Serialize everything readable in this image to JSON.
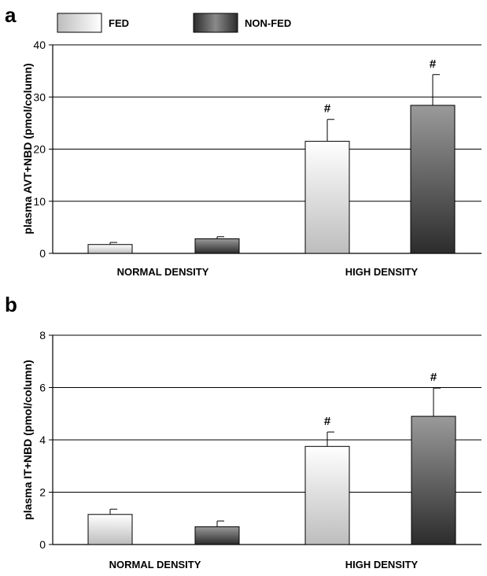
{
  "legend": [
    {
      "label": "FED",
      "style": "light"
    },
    {
      "label": "NON-FED",
      "style": "dark"
    }
  ],
  "colors": {
    "fed_top": "#ffffff",
    "fed_bottom": "#bdbdbd",
    "nonfed_top": "#9a9a9a",
    "nonfed_bottom": "#2c2c2c",
    "grid": "#000000"
  },
  "chart_data": [
    {
      "panel": "a",
      "type": "bar",
      "ylabel": "plasma AVT+NBD (pmol/column)",
      "ylim": [
        0,
        40
      ],
      "yticks": [
        0,
        10,
        20,
        30,
        40
      ],
      "grid": true,
      "categories": [
        "NORMAL DENSITY",
        "HIGH DENSITY"
      ],
      "series": [
        {
          "name": "FED",
          "values": [
            1.7,
            21.5
          ],
          "errors": [
            0.4,
            4.2
          ],
          "annotations": [
            "",
            "#"
          ]
        },
        {
          "name": "NON-FED",
          "values": [
            2.8,
            28.4
          ],
          "errors": [
            0.4,
            5.9
          ],
          "annotations": [
            "",
            "#"
          ]
        }
      ]
    },
    {
      "panel": "b",
      "type": "bar",
      "ylabel": "plasma IT+NBD (pmol/column)",
      "ylim": [
        0,
        8
      ],
      "yticks": [
        0,
        2,
        4,
        6,
        8
      ],
      "grid": true,
      "categories": [
        "NORMAL DENSITY",
        "HIGH DENSITY"
      ],
      "series": [
        {
          "name": "FED",
          "values": [
            1.15,
            3.75
          ],
          "errors": [
            0.2,
            0.55
          ],
          "annotations": [
            "",
            "#"
          ]
        },
        {
          "name": "NON-FED",
          "values": [
            0.68,
            4.9
          ],
          "errors": [
            0.22,
            1.08
          ],
          "annotations": [
            "",
            "#"
          ]
        }
      ]
    }
  ]
}
